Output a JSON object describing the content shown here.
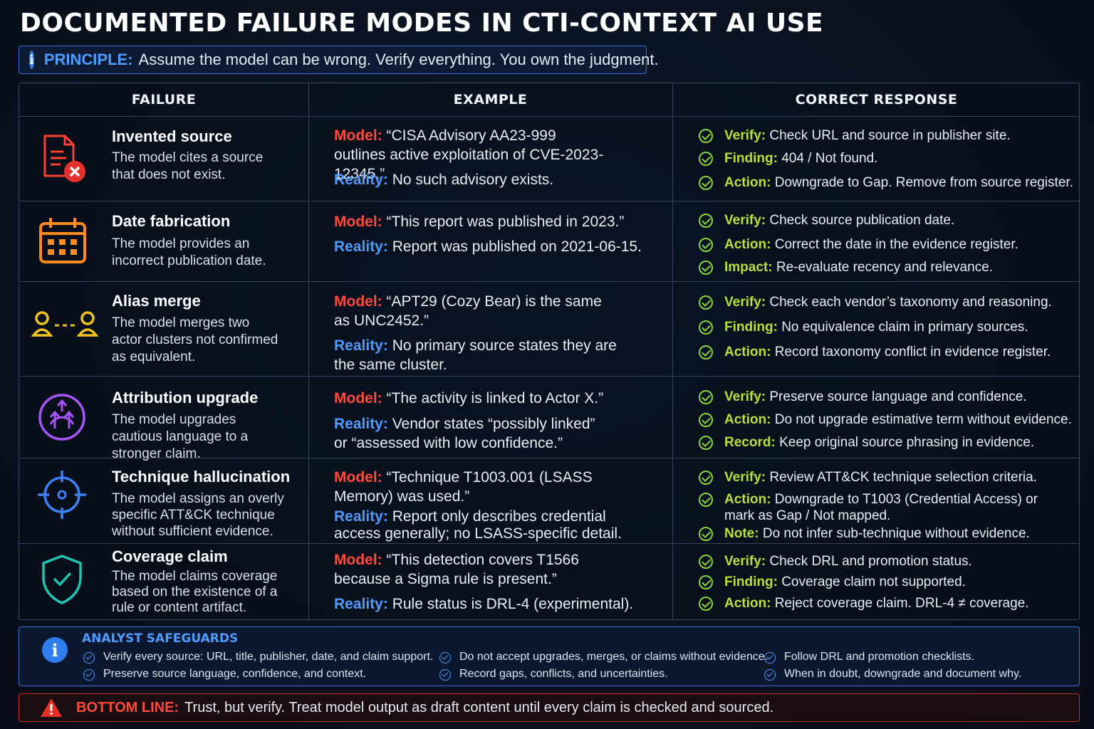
{
  "title": "DOCUMENTED FAILURE MODES IN CTI-CONTEXT AI USE",
  "principle": {
    "label": "PRINCIPLE:",
    "text": "Assume the model can be wrong. Verify everything. You own the judgment."
  },
  "columns": [
    "FAILURE",
    "EXAMPLE",
    "CORRECT RESPONSE"
  ],
  "rows": [
    {
      "icon": "document-x-icon",
      "name": "Invented source",
      "desc": "The model cites a source that does not exist.",
      "model_label": "Model:",
      "model": "“CISA Advisory AA23-999 outlines active exploitation of CVE-2023-12345.”",
      "reality_label": "Reality:",
      "reality": "No such advisory exists.",
      "responses": [
        {
          "k": "Verify:",
          "v": "Check URL and source in publisher site."
        },
        {
          "k": "Finding:",
          "v": "404 / Not found."
        },
        {
          "k": "Action:",
          "v": "Downgrade to Gap. Remove from source register."
        }
      ]
    },
    {
      "icon": "calendar-icon",
      "name": "Date fabrication",
      "desc": "The model provides an incorrect publication date.",
      "model_label": "Model:",
      "model": "“This report was published in 2023.”",
      "reality_label": "Reality:",
      "reality": "Report was published on 2021-06-15.",
      "responses": [
        {
          "k": "Verify:",
          "v": "Check source publication date."
        },
        {
          "k": "Action:",
          "v": "Correct the date in the evidence register."
        },
        {
          "k": "Impact:",
          "v": "Re-evaluate recency and relevance."
        }
      ]
    },
    {
      "icon": "users-link-icon",
      "name": "Alias merge",
      "desc": "The model merges two actor clusters not confirmed as equivalent.",
      "model_label": "Model:",
      "model": "“APT29 (Cozy Bear) is the same as UNC2452.”",
      "reality_label": "Reality:",
      "reality": "No primary source states they are the same cluster.",
      "responses": [
        {
          "k": "Verify:",
          "v": "Check each vendor’s taxonomy and reasoning."
        },
        {
          "k": "Finding:",
          "v": "No equivalence claim in primary sources."
        },
        {
          "k": "Action:",
          "v": "Record taxonomy conflict in evidence register."
        }
      ]
    },
    {
      "icon": "upgrade-arrows-icon",
      "name": "Attribution upgrade",
      "desc": "The model upgrades cautious language to a stronger claim.",
      "model_label": "Model:",
      "model": "“The activity is linked to Actor X.”",
      "reality_label": "Reality:",
      "reality": "Vendor states “possibly linked” or “assessed with low confidence.”",
      "responses": [
        {
          "k": "Verify:",
          "v": "Preserve source language and confidence."
        },
        {
          "k": "Action:",
          "v": "Do not upgrade estimative term without evidence."
        },
        {
          "k": "Record:",
          "v": "Keep original source phrasing in evidence."
        }
      ]
    },
    {
      "icon": "crosshair-icon",
      "name": "Technique hallucination",
      "desc": "The model assigns an overly specific ATT&CK technique without sufficient evidence.",
      "model_label": "Model:",
      "model": "“Technique T1003.001 (LSASS Memory) was used.”",
      "reality_label": "Reality:",
      "reality": "Report only describes credential access generally; no LSASS-specific detail.",
      "responses": [
        {
          "k": "Verify:",
          "v": "Review ATT&CK technique selection criteria."
        },
        {
          "k": "Action:",
          "v": "Downgrade to T1003 (Credential Access) or"
        },
        {
          "k": "",
          "v": "mark as Gap / Not mapped."
        },
        {
          "k": "Note:",
          "v": "Do not infer sub-technique without evidence."
        }
      ]
    },
    {
      "icon": "shield-check-icon",
      "name": "Coverage claim",
      "desc": "The model claims coverage based on the existence of a rule or content artifact.",
      "model_label": "Model:",
      "model": "“This detection covers T1566 because a Sigma rule is present.”",
      "reality_label": "Reality:",
      "reality": "Rule status is DRL-4 (experimental).",
      "responses": [
        {
          "k": "Verify:",
          "v": "Check DRL and promotion status."
        },
        {
          "k": "Finding:",
          "v": "Coverage claim not supported."
        },
        {
          "k": "Action:",
          "v": "Reject coverage claim. DRL-4 ≠ coverage."
        }
      ]
    }
  ],
  "safeguards": {
    "title": "ANALYST SAFEGUARDS",
    "items": [
      "Verify every source: URL, title, publisher, date, and claim support.",
      "Preserve source language, confidence, and context.",
      "Do not accept upgrades, merges, or claims without evidence.",
      "Record gaps, conflicts, and uncertainties.",
      "Follow DRL and promotion checklists.",
      "When in doubt, downgrade and document why."
    ]
  },
  "bottom_line": {
    "label": "BOTTOM LINE:",
    "text": "Trust, but verify. Treat model output as draft content until every claim is checked and sourced."
  },
  "colors": {
    "model": "#ff4a3d",
    "reality": "#4f9cff",
    "response_key": "#b8e03a",
    "check": "#8bd33a"
  }
}
